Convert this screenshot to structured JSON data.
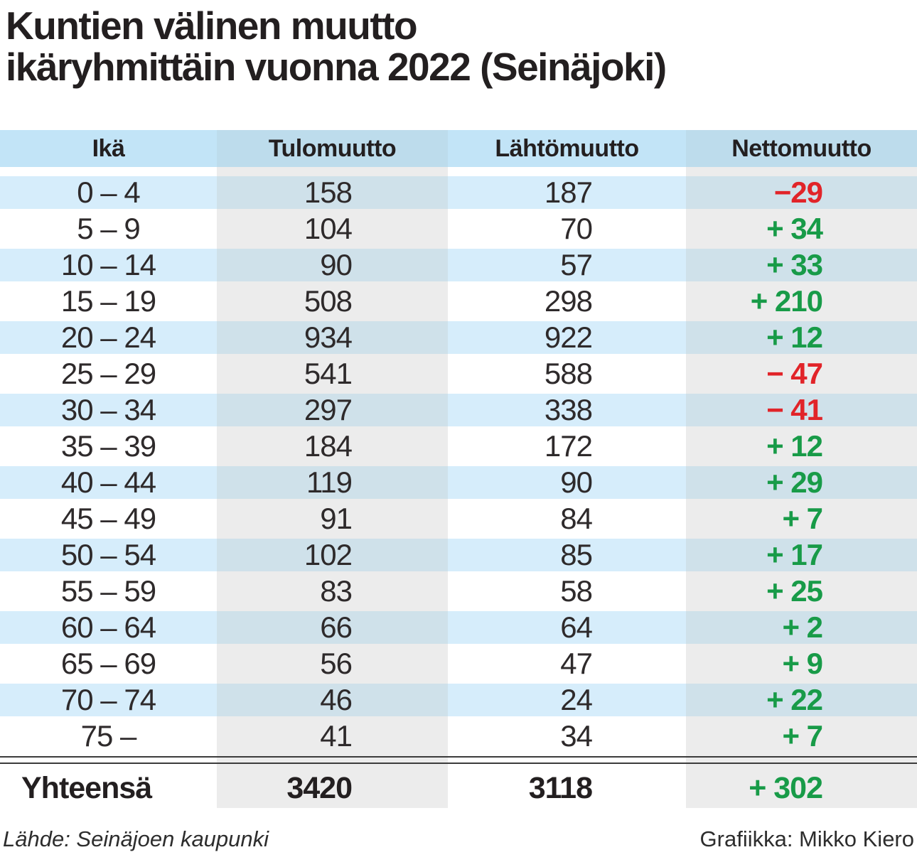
{
  "title": {
    "line1": "Kuntien välinen muutto",
    "line2": "ikäryhmittäin vuonna 2022 (Seinäjoki)"
  },
  "table": {
    "columns": [
      "Ikä",
      "Tulomuutto",
      "Lähtömuutto",
      "Nettomuutto"
    ],
    "rows": [
      {
        "age": "0 – 4",
        "in": "158",
        "out": "187",
        "net": "−29",
        "net_sign": "negative"
      },
      {
        "age": "5 – 9",
        "in": "104",
        "out": "70",
        "net": "+ 34",
        "net_sign": "positive"
      },
      {
        "age": "10 – 14",
        "in": "90",
        "out": "57",
        "net": "+ 33",
        "net_sign": "positive"
      },
      {
        "age": "15 – 19",
        "in": "508",
        "out": "298",
        "net": "+ 210",
        "net_sign": "positive"
      },
      {
        "age": "20 – 24",
        "in": "934",
        "out": "922",
        "net": "+ 12",
        "net_sign": "positive"
      },
      {
        "age": "25 – 29",
        "in": "541",
        "out": "588",
        "net": "− 47",
        "net_sign": "negative"
      },
      {
        "age": "30 – 34",
        "in": "297",
        "out": "338",
        "net": "− 41",
        "net_sign": "negative"
      },
      {
        "age": "35 – 39",
        "in": "184",
        "out": "172",
        "net": "+ 12",
        "net_sign": "positive"
      },
      {
        "age": "40 – 44",
        "in": "119",
        "out": "90",
        "net": "+ 29",
        "net_sign": "positive"
      },
      {
        "age": "45 – 49",
        "in": "91",
        "out": "84",
        "net": "+ 7",
        "net_sign": "positive"
      },
      {
        "age": "50 – 54",
        "in": "102",
        "out": "85",
        "net": "+ 17",
        "net_sign": "positive"
      },
      {
        "age": "55 – 59",
        "in": "83",
        "out": "58",
        "net": "+ 25",
        "net_sign": "positive"
      },
      {
        "age": "60 – 64",
        "in": "66",
        "out": "64",
        "net": "+ 2",
        "net_sign": "positive"
      },
      {
        "age": "65 – 69",
        "in": "56",
        "out": "47",
        "net": "+ 9",
        "net_sign": "positive"
      },
      {
        "age": "70 – 74",
        "in": "46",
        "out": "24",
        "net": "+ 22",
        "net_sign": "positive"
      },
      {
        "age": "75 –",
        "in": "41",
        "out": "34",
        "net": "+ 7",
        "net_sign": "positive"
      }
    ],
    "total": {
      "label": "Yhteensä",
      "in": "3420",
      "out": "3118",
      "net": "+ 302",
      "net_sign": "positive"
    }
  },
  "footer": {
    "source": "Lähde: Seinäjoen kaupunki",
    "credit": "Grafiikka: Mikko Kiero"
  },
  "colors": {
    "text": "#231f20",
    "header-blue": "#c2e4f7",
    "header-blue-band": "#bddcec",
    "row-blue": "#d6edfb",
    "row-blue-band": "#cfe1ea",
    "row-white": "#ffffff",
    "row-white-band": "#ececec",
    "positive-green": "#189b48",
    "negative-red": "#e12429"
  },
  "chart_data": {
    "type": "table",
    "title": "Kuntien välinen muutto ikäryhmittäin vuonna 2022 (Seinäjoki)",
    "columns": [
      "Ikä",
      "Tulomuutto",
      "Lähtömuutto",
      "Nettomuutto"
    ],
    "age_groups": [
      "0–4",
      "5–9",
      "10–14",
      "15–19",
      "20–24",
      "25–29",
      "30–34",
      "35–39",
      "40–44",
      "45–49",
      "50–54",
      "55–59",
      "60–64",
      "65–69",
      "70–74",
      "75–"
    ],
    "tulomuutto": [
      158,
      104,
      90,
      508,
      934,
      541,
      297,
      184,
      119,
      91,
      102,
      83,
      66,
      56,
      46,
      41
    ],
    "lahtomuutto": [
      187,
      70,
      57,
      298,
      922,
      588,
      338,
      172,
      90,
      84,
      85,
      58,
      64,
      47,
      24,
      34
    ],
    "nettomuutto": [
      -29,
      34,
      33,
      210,
      12,
      -47,
      -41,
      12,
      29,
      7,
      17,
      25,
      2,
      9,
      22,
      7
    ],
    "total": {
      "label": "Yhteensä",
      "tulomuutto": 3420,
      "lahtomuutto": 3118,
      "nettomuutto": 302
    },
    "source": "Lähde: Seinäjoen kaupunki",
    "credit": "Grafiikka: Mikko Kiero",
    "layout": {
      "row_striping": "blue-white",
      "shaded_columns": [
        "Tulomuutto",
        "Nettomuutto"
      ],
      "grid": false
    }
  }
}
